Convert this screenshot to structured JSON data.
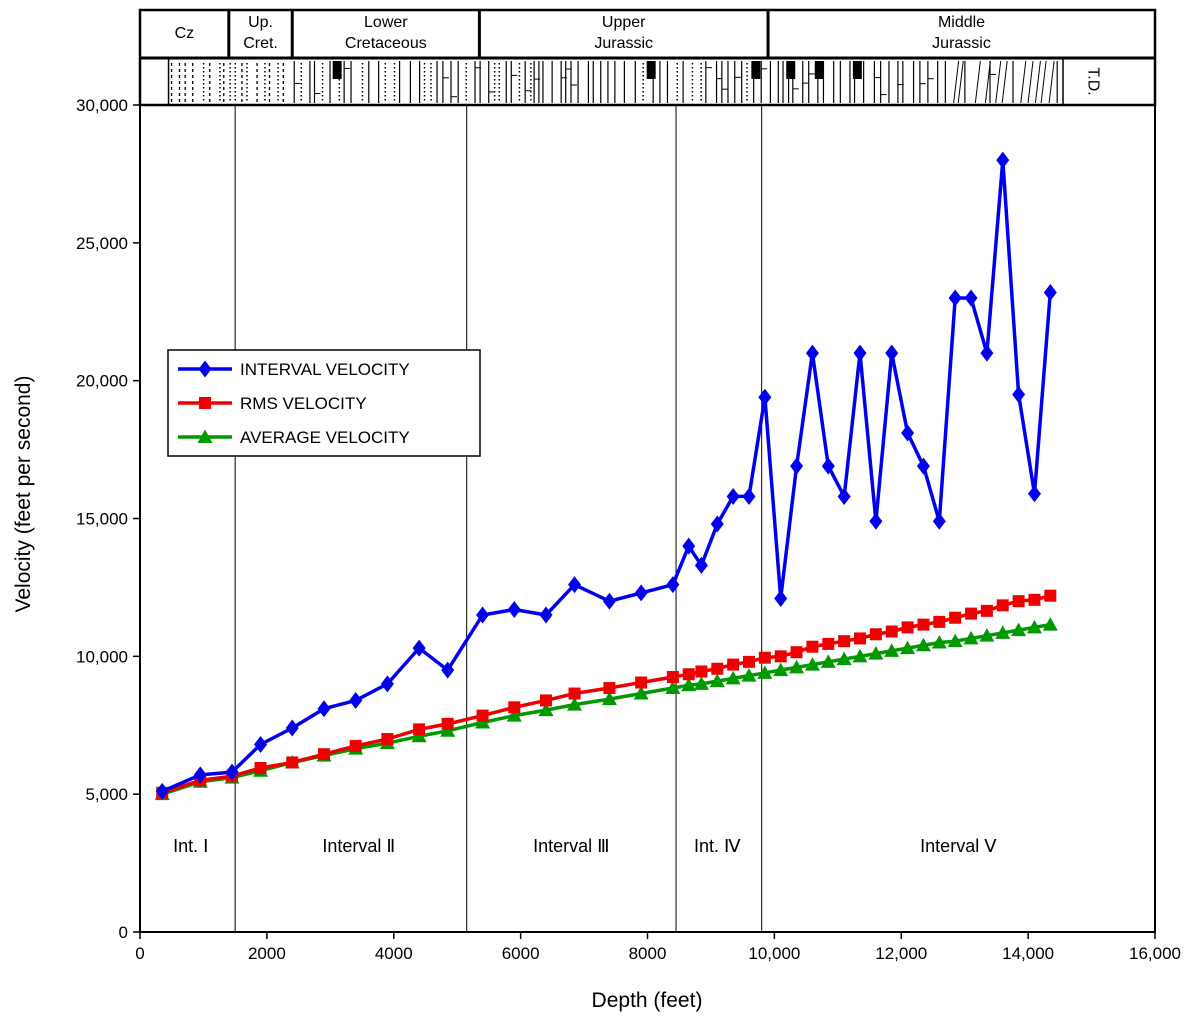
{
  "chart_data": {
    "type": "line",
    "xlabel": "Depth  (feet)",
    "ylabel": "Velocity  (feet per second)",
    "xlim": [
      0,
      16000
    ],
    "ylim": [
      0,
      30000
    ],
    "x_ticks": [
      0,
      2000,
      4000,
      6000,
      8000,
      10000,
      12000,
      14000,
      16000
    ],
    "x_tick_labels": [
      "0",
      "2000",
      "4000",
      "6000",
      "8000",
      "10,000",
      "12,000",
      "14,000",
      "16,000"
    ],
    "y_ticks": [
      0,
      5000,
      10000,
      15000,
      20000,
      25000,
      30000
    ],
    "y_tick_labels": [
      "0",
      "5,000",
      "10,000",
      "15,000",
      "20,000",
      "25,000",
      "30,000"
    ],
    "grid": false,
    "legend_position": "left-middle",
    "series": [
      {
        "name": "INTERVAL VELOCITY",
        "color": "#0000ee",
        "marker": "diamond",
        "x": [
          350,
          950,
          1450,
          1900,
          2400,
          2900,
          3400,
          3900,
          4400,
          4850,
          5400,
          5900,
          6400,
          6850,
          7400,
          7900,
          8400,
          8650,
          8850,
          9100,
          9350,
          9600,
          9850,
          10100,
          10350,
          10600,
          10850,
          11100,
          11350,
          11600,
          11850,
          12100,
          12350,
          12600,
          12850,
          13100,
          13350,
          13600,
          13850,
          14100,
          14350
        ],
        "y": [
          5100,
          5700,
          5800,
          6800,
          7400,
          8100,
          8400,
          9000,
          10300,
          9500,
          11500,
          11700,
          11500,
          12600,
          12000,
          12300,
          12600,
          14000,
          13300,
          14800,
          15800,
          15800,
          19400,
          12100,
          16900,
          21000,
          16900,
          15800,
          21000,
          14900,
          21000,
          18100,
          16900,
          14900,
          23000,
          23000,
          21000,
          28000,
          19500,
          15900,
          23200
        ]
      },
      {
        "name": "RMS  VELOCITY",
        "color": "#ee0000",
        "marker": "square",
        "x": [
          350,
          950,
          1450,
          1900,
          2400,
          2900,
          3400,
          3900,
          4400,
          4850,
          5400,
          5900,
          6400,
          6850,
          7400,
          7900,
          8400,
          8650,
          8850,
          9100,
          9350,
          9600,
          9850,
          10100,
          10350,
          10600,
          10850,
          11100,
          11350,
          11600,
          11850,
          12100,
          12350,
          12600,
          12850,
          13100,
          13350,
          13600,
          13850,
          14100,
          14350
        ],
        "y": [
          5050,
          5500,
          5650,
          5950,
          6150,
          6450,
          6750,
          7000,
          7350,
          7550,
          7850,
          8150,
          8400,
          8650,
          8850,
          9050,
          9250,
          9350,
          9450,
          9550,
          9700,
          9800,
          9950,
          10000,
          10150,
          10350,
          10450,
          10550,
          10650,
          10800,
          10900,
          11050,
          11150,
          11250,
          11400,
          11550,
          11650,
          11850,
          12000,
          12050,
          12200
        ]
      },
      {
        "name": "AVERAGE  VELOCITY",
        "color": "#009900",
        "marker": "triangle",
        "x": [
          350,
          950,
          1450,
          1900,
          2400,
          2900,
          3400,
          3900,
          4400,
          4850,
          5400,
          5900,
          6400,
          6850,
          7400,
          7900,
          8400,
          8650,
          8850,
          9100,
          9350,
          9600,
          9850,
          10100,
          10350,
          10600,
          10850,
          11100,
          11350,
          11600,
          11850,
          12100,
          12350,
          12600,
          12850,
          13100,
          13350,
          13600,
          13850,
          14100,
          14350
        ],
        "y": [
          5000,
          5450,
          5600,
          5850,
          6150,
          6400,
          6650,
          6850,
          7100,
          7300,
          7600,
          7850,
          8050,
          8250,
          8450,
          8650,
          8850,
          8950,
          9000,
          9100,
          9200,
          9300,
          9400,
          9500,
          9600,
          9700,
          9800,
          9900,
          10000,
          10100,
          10200,
          10300,
          10400,
          10500,
          10550,
          10650,
          10750,
          10850,
          10950,
          11050,
          11150
        ]
      }
    ],
    "interval_boundaries": [
      1500,
      5150,
      8450,
      9800
    ],
    "intervals": [
      {
        "label": "Int. Ⅰ",
        "x": 800
      },
      {
        "label": "Interval  Ⅱ",
        "x": 3450
      },
      {
        "label": "Interval  Ⅲ",
        "x": 6800
      },
      {
        "label": "Int. Ⅳ",
        "x": 9100
      },
      {
        "label": "Interval  Ⅴ",
        "x": 12900
      }
    ],
    "stratigraphy": [
      {
        "line1": "Cz",
        "line2": "",
        "x_start": 0,
        "x_end": 1400
      },
      {
        "line1": "Up.",
        "line2": "Cret.",
        "x_start": 1400,
        "x_end": 2400
      },
      {
        "line1": "Lower",
        "line2": "Cretaceous",
        "x_start": 2400,
        "x_end": 5350
      },
      {
        "line1": "Upper",
        "line2": "Jurassic",
        "x_start": 5350,
        "x_end": 9900
      },
      {
        "line1": "Middle",
        "line2": "Jurassic",
        "x_start": 9900,
        "x_end": 16000
      }
    ],
    "td_label": "T.D."
  }
}
